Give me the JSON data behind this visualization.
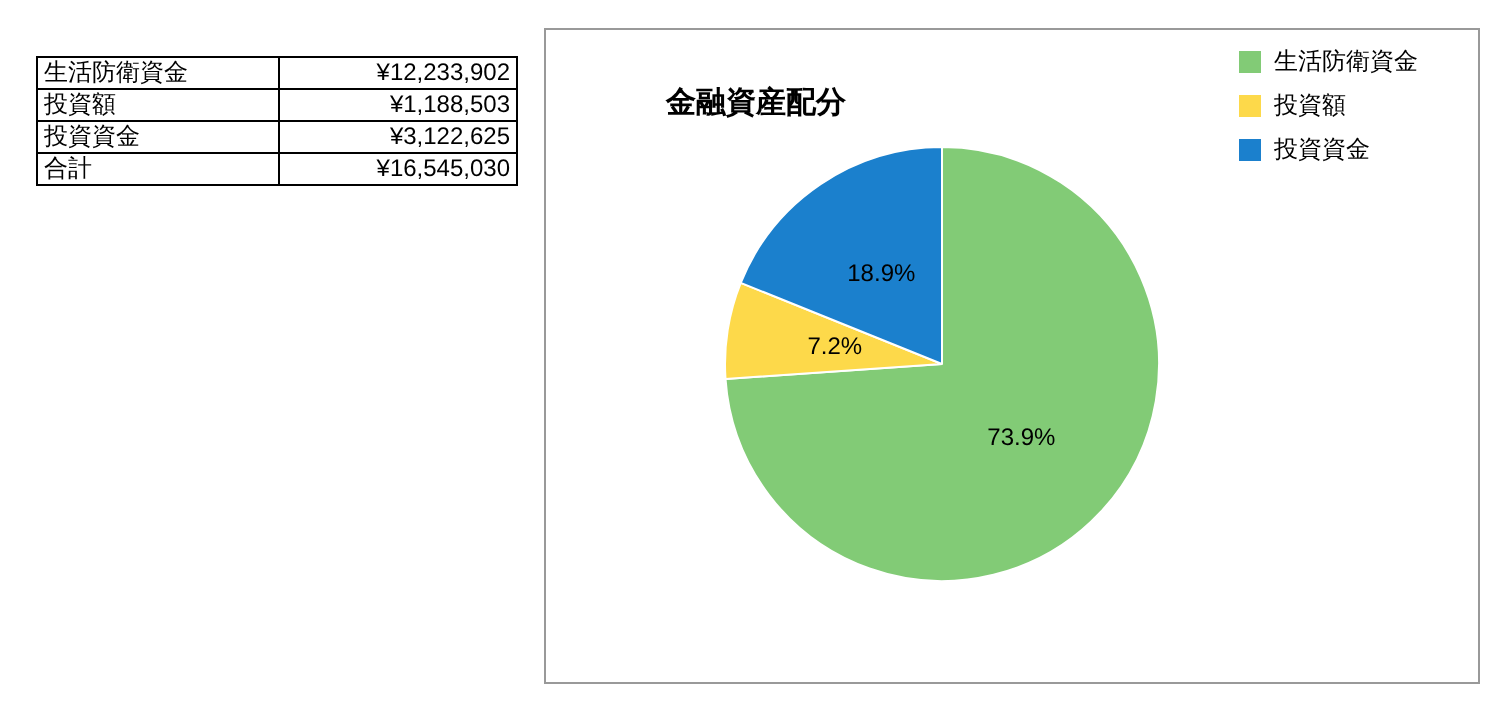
{
  "chart_data": {
    "type": "pie",
    "title": "金融資産配分",
    "categories": [
      "生活防衛資金",
      "投資額",
      "投資資金"
    ],
    "values": [
      73.9,
      7.2,
      18.9
    ],
    "value_labels": [
      "73.9%",
      "7.2%",
      "18.9%"
    ],
    "colors": [
      "#82cb76",
      "#fdd94a",
      "#1b80cd"
    ],
    "legend": "top right",
    "annotations": [
      "生活防衛資金",
      "¥12,233,902",
      "投資額",
      "¥1,188,503",
      "投資資金",
      "¥3,122,625",
      "合計",
      "¥16,545,030"
    ]
  }
}
